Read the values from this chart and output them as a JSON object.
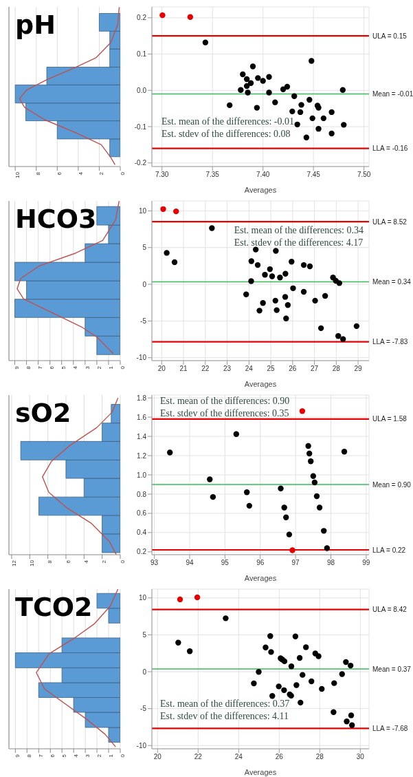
{
  "chart_data": [
    {
      "type": "histogram",
      "orientation": "horizontal",
      "title": "pH",
      "bins": [
        -0.183,
        -0.134,
        -0.084,
        -0.035,
        0.015,
        0.064,
        0.114,
        0.163,
        0.212
      ],
      "values": [
        1,
        6,
        9,
        10,
        7,
        1,
        1,
        2
      ],
      "color": "#5b9bd5",
      "series": [
        {
          "type": "line",
          "color": "#c0504d",
          "x": [
            0.229,
            0.181,
            0.132,
            0.09,
            0.063,
            0.029,
            0.001,
            -0.023,
            -0.047,
            -0.081,
            -0.116,
            -0.15,
            -0.185,
            -0.205
          ],
          "values": [
            0.1,
            0.24,
            0.9,
            2.3,
            4.3,
            7.0,
            8.9,
            9.6,
            9.1,
            7.2,
            4.3,
            1.8,
            0.9,
            0.5
          ]
        }
      ],
      "xlim": [
        10.6,
        0
      ],
      "xticks": [
        10,
        8,
        6,
        4,
        2,
        0
      ],
      "ylim": [
        -0.21,
        0.23
      ],
      "tick_labels": "x",
      "grid": "x"
    },
    {
      "type": "scatter",
      "xlabel": "Averages",
      "marker": "circle",
      "grid": true,
      "series": [
        {
          "color": "#000000",
          "x": [
            7.343,
            7.448,
            7.39,
            7.38,
            7.406,
            7.395,
            7.384,
            7.4,
            7.388,
            7.384,
            7.424,
            7.378,
            7.42,
            7.479,
            7.385,
            7.406,
            7.431,
            7.367,
            7.394,
            7.412,
            7.446,
            7.438,
            7.454,
            7.455,
            7.429,
            7.437,
            7.468,
            7.449,
            7.46,
            7.434,
            7.48,
            7.455,
            7.468,
            7.443
          ],
          "values": [
            0.132,
            0.081,
            0.066,
            0.044,
            0.037,
            0.034,
            0.031,
            0.026,
            0.02,
            0.012,
            0.01,
            0.001,
            0.003,
            0.001,
            -0.006,
            -0.006,
            -0.016,
            -0.041,
            -0.048,
            -0.033,
            -0.026,
            -0.04,
            -0.042,
            -0.048,
            -0.058,
            -0.06,
            -0.06,
            -0.077,
            -0.077,
            -0.094,
            -0.095,
            -0.106,
            -0.119,
            -0.13
          ]
        },
        {
          "color": "#e60000",
          "x": [
            7.3005,
            7.328
          ],
          "values": [
            0.207,
            0.202
          ]
        }
      ],
      "xlim": [
        7.29,
        7.505
      ],
      "xticks": [
        {
          "value": 7.3,
          "label": "7.30"
        },
        {
          "value": 7.35,
          "label": "7.35"
        },
        {
          "value": 7.4,
          "label": "7.40"
        },
        {
          "value": 7.45,
          "label": "7.45"
        },
        {
          "value": 7.5,
          "label": "7.50"
        }
      ],
      "ylim": [
        -0.21,
        0.23
      ],
      "yticks": [
        -0.2,
        -0.1,
        {
          "value": 0,
          "label": "0.0"
        },
        0.1,
        0.2
      ],
      "ref_lines": [
        {
          "axis": "y",
          "value": 0.15,
          "label": "ULA = 0.15",
          "color": "#e60000"
        },
        {
          "axis": "y",
          "value": -0.01,
          "label": "Mean = -0.01",
          "color": "#33bb55"
        },
        {
          "axis": "y",
          "value": -0.16,
          "label": "LLA = -0.16",
          "color": "#e60000"
        }
      ],
      "annotations": [
        "Est. mean of the differences: -0.01",
        "Est. stdev of the differences: 0.08"
      ]
    },
    {
      "type": "histogram",
      "orientation": "horizontal",
      "title": "HCO3",
      "bins": [
        -9.58,
        -7.05,
        -4.52,
        -2.03,
        0.47,
        3.0,
        5.53,
        8.06,
        10.59
      ],
      "values": [
        2,
        3,
        9,
        8,
        9,
        3,
        1,
        2
      ],
      "color": "#5b9bd5",
      "series": [
        {
          "type": "line",
          "color": "#c0504d",
          "x": [
            11.35,
            8.75,
            5.98,
            4.25,
            2.51,
            0.78,
            -0.61,
            -1.99,
            -3.73,
            -5.81,
            -7.19,
            -9.45
          ],
          "values": [
            0.1,
            0.4,
            1.5,
            3.8,
            6.9,
            8.5,
            8.8,
            8.25,
            6.0,
            3.3,
            2.0,
            0.6
          ]
        }
      ],
      "xlim": [
        9.5,
        0
      ],
      "xticks": [
        9,
        8,
        7,
        6,
        5,
        4,
        3,
        2,
        1,
        0
      ],
      "ylim": [
        -10.4,
        11.35
      ],
      "tick_labels": "x",
      "grid": "x"
    },
    {
      "type": "scatter",
      "xlabel": "Averages",
      "marker": "circle",
      "grid": true,
      "series": [
        {
          "color": "#000000",
          "x": [
            22.3,
            20.23,
            20.59,
            24.31,
            25.23,
            24.11,
            24.4,
            25.95,
            24.96,
            26.51,
            26.79,
            24.73,
            25.06,
            25.42,
            25.67,
            24.1,
            27.85,
            27.98,
            28.14,
            23.87,
            26.02,
            26.51,
            27.49,
            25.66,
            25.21,
            27.03,
            24.64,
            25.78,
            24.48,
            25.27,
            25.7,
            27.3,
            28.93,
            28.09,
            28.31
          ],
          "values": [
            7.64,
            4.28,
            3.0,
            4.73,
            4.56,
            3.14,
            2.62,
            3.07,
            2.06,
            2.62,
            2.44,
            1.3,
            1.09,
            0.92,
            1.44,
            0.43,
            0.92,
            0.47,
            0.16,
            -1.37,
            -0.54,
            -1.02,
            -1.58,
            -1.72,
            -2.23,
            -2.23,
            -2.55,
            -2.83,
            -3.59,
            -3.52,
            -4.66,
            -5.98,
            -5.7,
            -7.05,
            -7.47
          ]
        },
        {
          "color": "#e60000",
          "x": [
            20.07,
            20.66
          ],
          "values": [
            10.24,
            9.93
          ]
        }
      ],
      "xlim": [
        19.55,
        29.5
      ],
      "xticks": [
        20,
        21,
        22,
        23,
        24,
        25,
        26,
        27,
        28,
        29
      ],
      "ylim": [
        -10.4,
        11.35
      ],
      "yticks": [
        -10,
        -5,
        0,
        5,
        10
      ],
      "ref_lines": [
        {
          "axis": "y",
          "value": 8.52,
          "label": "ULA = 8.52",
          "color": "#e60000"
        },
        {
          "axis": "y",
          "value": 0.34,
          "label": "Mean = 0.34",
          "color": "#33bb55"
        },
        {
          "axis": "y",
          "value": -7.83,
          "label": "LLA = -7.83",
          "color": "#e60000"
        }
      ],
      "annotations": [
        "Est. mean of the differences: 0.34",
        "Est. stdev of the differences: 4.17"
      ]
    },
    {
      "type": "histogram",
      "orientation": "horizontal",
      "title": "sO2",
      "bins": [
        0.192,
        0.386,
        0.579,
        0.77,
        0.964,
        1.155,
        1.348,
        1.539,
        1.733
      ],
      "values": [
        2,
        2,
        9,
        4,
        6,
        11,
        2,
        1
      ],
      "color": "#5b9bd5",
      "series": [
        {
          "type": "line",
          "color": "#c0504d",
          "x": [
            1.8,
            1.652,
            1.491,
            1.303,
            1.141,
            0.98,
            0.819,
            0.657,
            0.496,
            0.308,
            0.173
          ],
          "values": [
            0.25,
            0.9,
            2.6,
            5.6,
            7.6,
            8.6,
            7.9,
            5.9,
            3.2,
            1.2,
            0.45
          ]
        }
      ],
      "xlim": [
        12.3,
        0
      ],
      "xticks": [
        12,
        10,
        8,
        6,
        4,
        2,
        0
      ],
      "ylim": [
        0.17,
        1.83
      ],
      "tick_labels": "x",
      "grid": "x"
    },
    {
      "type": "scatter",
      "xlabel": "Averages",
      "marker": "circle",
      "grid": true,
      "series": [
        {
          "color": "#000000",
          "x": [
            93.44,
            95.32,
            94.57,
            94.66,
            95.62,
            95.69,
            96.58,
            96.68,
            96.73,
            96.82,
            97.36,
            97.39,
            97.43,
            97.5,
            97.54,
            97.6,
            97.68,
            97.8,
            97.89,
            98.38
          ],
          "values": [
            1.233,
            1.424,
            0.953,
            0.77,
            0.819,
            0.679,
            0.859,
            0.66,
            0.558,
            0.38,
            1.3,
            1.222,
            1.141,
            0.988,
            0.921,
            0.778,
            0.66,
            0.418,
            0.238,
            1.241
          ]
        },
        {
          "color": "#e60000",
          "x": [
            97.19,
            96.91
          ],
          "values": [
            1.663,
            0.216
          ]
        }
      ],
      "xlim": [
        92.93,
        99.08
      ],
      "xticks": [
        93,
        94,
        95,
        96,
        97,
        98,
        99
      ],
      "ylim": [
        0.17,
        1.83
      ],
      "yticks": [
        0.2,
        0.4,
        0.6,
        0.8,
        {
          "value": 1,
          "label": "1.0"
        },
        1.2,
        1.4,
        1.6,
        1.8
      ],
      "ref_lines": [
        {
          "axis": "y",
          "value": 1.58,
          "label": "ULA = 1.58",
          "color": "#e60000"
        },
        {
          "axis": "y",
          "value": 0.9,
          "label": "Mean = 0.90",
          "color": "#33bb55"
        },
        {
          "axis": "y",
          "value": 0.22,
          "label": "LLA = 0.22",
          "color": "#e60000"
        }
      ],
      "annotations": [
        "Est. mean of the differences: 0.90",
        "Est. stdev of the differences: 0.35"
      ]
    },
    {
      "type": "histogram",
      "orientation": "horizontal",
      "title": "TCO2",
      "bins": [
        -9.56,
        -7.55,
        -5.5,
        -3.49,
        -1.48,
        0.53,
        2.57,
        4.58,
        6.59,
        8.6,
        10.61
      ],
      "values": [
        1,
        3,
        4,
        7,
        5,
        9,
        5,
        0,
        1,
        2
      ],
      "color": "#5b9bd5",
      "series": [
        {
          "type": "line",
          "color": "#c0504d",
          "x": [
            11.19,
            8.91,
            6.52,
            4.48,
            2.44,
            -0.12,
            -2.33,
            -4.38,
            -6.42,
            -8.47,
            -10.17
          ],
          "values": [
            0.2,
            0.85,
            2.2,
            4.0,
            6.1,
            7.2,
            6.5,
            4.7,
            2.9,
            1.3,
            0.4
          ]
        }
      ],
      "xlim": [
        9.55,
        0
      ],
      "xticks": [
        9,
        8,
        7,
        6,
        5,
        4,
        3,
        2,
        1,
        0
      ],
      "ylim": [
        -10.44,
        11.19
      ],
      "tick_labels": "x",
      "grid": "x"
    },
    {
      "type": "scatter",
      "xlabel": "Averages",
      "marker": "circle",
      "grid": true,
      "series": [
        {
          "color": "#000000",
          "x": [
            23.36,
            21.02,
            21.59,
            25.56,
            26.8,
            25.33,
            27.32,
            25.6,
            27.78,
            27.94,
            26.07,
            26.15,
            26.26,
            27.01,
            26.6,
            29.29,
            29.52,
            24.99,
            27.15,
            29.1,
            24.75,
            27.59,
            28.71,
            25.98,
            26.85,
            26.24,
            28.1,
            25.66,
            26.52,
            26.59,
            27.05,
            28.68,
            29.55,
            29.33,
            29.59
          ],
          "values": [
            7.24,
            3.94,
            2.78,
            4.82,
            4.78,
            3.29,
            3.32,
            2.67,
            2.47,
            2.1,
            1.82,
            1.65,
            1.41,
            1.86,
            0.73,
            1.31,
            0.83,
            -0.02,
            -0.43,
            -0.32,
            -1.58,
            -1.31,
            -1.55,
            -1.99,
            -1.82,
            -2.5,
            -2.33,
            -3.29,
            -3.08,
            -3.25,
            -4.18,
            -5.47,
            -5.91,
            -6.73,
            -7.24
          ]
        },
        {
          "color": "#e60000",
          "x": [
            21.11,
            21.96
          ],
          "values": [
            9.8,
            10.07
          ]
        }
      ],
      "xlim": [
        19.72,
        30.43
      ],
      "xticks": [
        20,
        22,
        24,
        26,
        28,
        30
      ],
      "ylim": [
        -10.44,
        11.19
      ],
      "yticks": [
        -10,
        -5,
        0,
        5,
        10
      ],
      "ref_lines": [
        {
          "axis": "y",
          "value": 8.42,
          "label": "ULA = 8.42",
          "color": "#e60000"
        },
        {
          "axis": "y",
          "value": 0.37,
          "label": "Mean = 0.37",
          "color": "#33bb55"
        },
        {
          "axis": "y",
          "value": -7.68,
          "label": "LLA = -7.68",
          "color": "#e60000"
        }
      ],
      "annotations": [
        "Est. mean of the differences: 0.37",
        "Est. stdev of the differences: 4.11"
      ]
    }
  ]
}
